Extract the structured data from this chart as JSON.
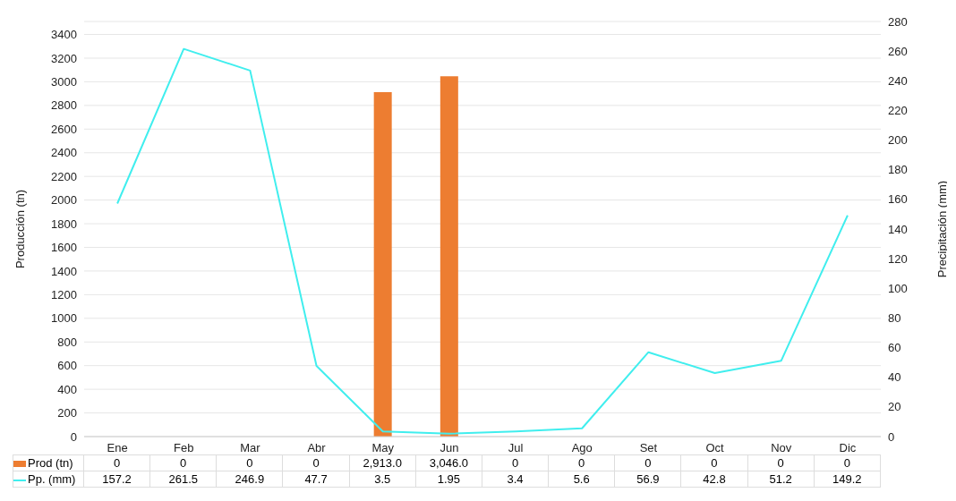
{
  "chart_data": {
    "type": "bar",
    "ylabel": "Producción (tn)",
    "y2label": "Precipitación (mm)",
    "categories": [
      "Ene",
      "Feb",
      "Mar",
      "Abr",
      "May",
      "Jun",
      "Jul",
      "Ago",
      "Set",
      "Oct",
      "Nov",
      "Dic"
    ],
    "series": [
      {
        "name": "Prod (tn)",
        "color": "#ed7d31",
        "values": [
          0,
          0,
          0,
          0,
          2913,
          3046,
          0,
          0,
          0,
          0,
          0,
          0
        ],
        "value_labels": [
          "0",
          "0",
          "0",
          "0",
          "2,913.0",
          "3,046.0",
          "0",
          "0",
          "0",
          "0",
          "0",
          "0"
        ]
      },
      {
        "name": "Pp. (mm)",
        "type": "line",
        "axis": "y2",
        "color": "#40eeee",
        "values": [
          157.2,
          261.5,
          246.9,
          47.7,
          3.5,
          1.95,
          3.4,
          5.6,
          56.9,
          42.8,
          51.2,
          149.2
        ],
        "value_labels": [
          "157.2",
          "261.5",
          "246.9",
          "47.7",
          "3.5",
          "1.95",
          "3.4",
          "5.6",
          "56.9",
          "42.8",
          "51.2",
          "149.2"
        ]
      }
    ],
    "ylim": [
      0,
      3510
    ],
    "yticks": [
      0,
      200,
      400,
      600,
      800,
      1000,
      1200,
      1400,
      1600,
      1800,
      2000,
      2200,
      2400,
      2600,
      2800,
      3000,
      3200,
      3400
    ],
    "y2lim": [
      0,
      280
    ],
    "y2ticks": [
      0,
      20,
      40,
      60,
      80,
      100,
      120,
      140,
      160,
      180,
      200,
      220,
      240,
      260,
      280
    ],
    "grid": "y",
    "legend": "bottom",
    "marker": "none",
    "line_style": "solid"
  }
}
